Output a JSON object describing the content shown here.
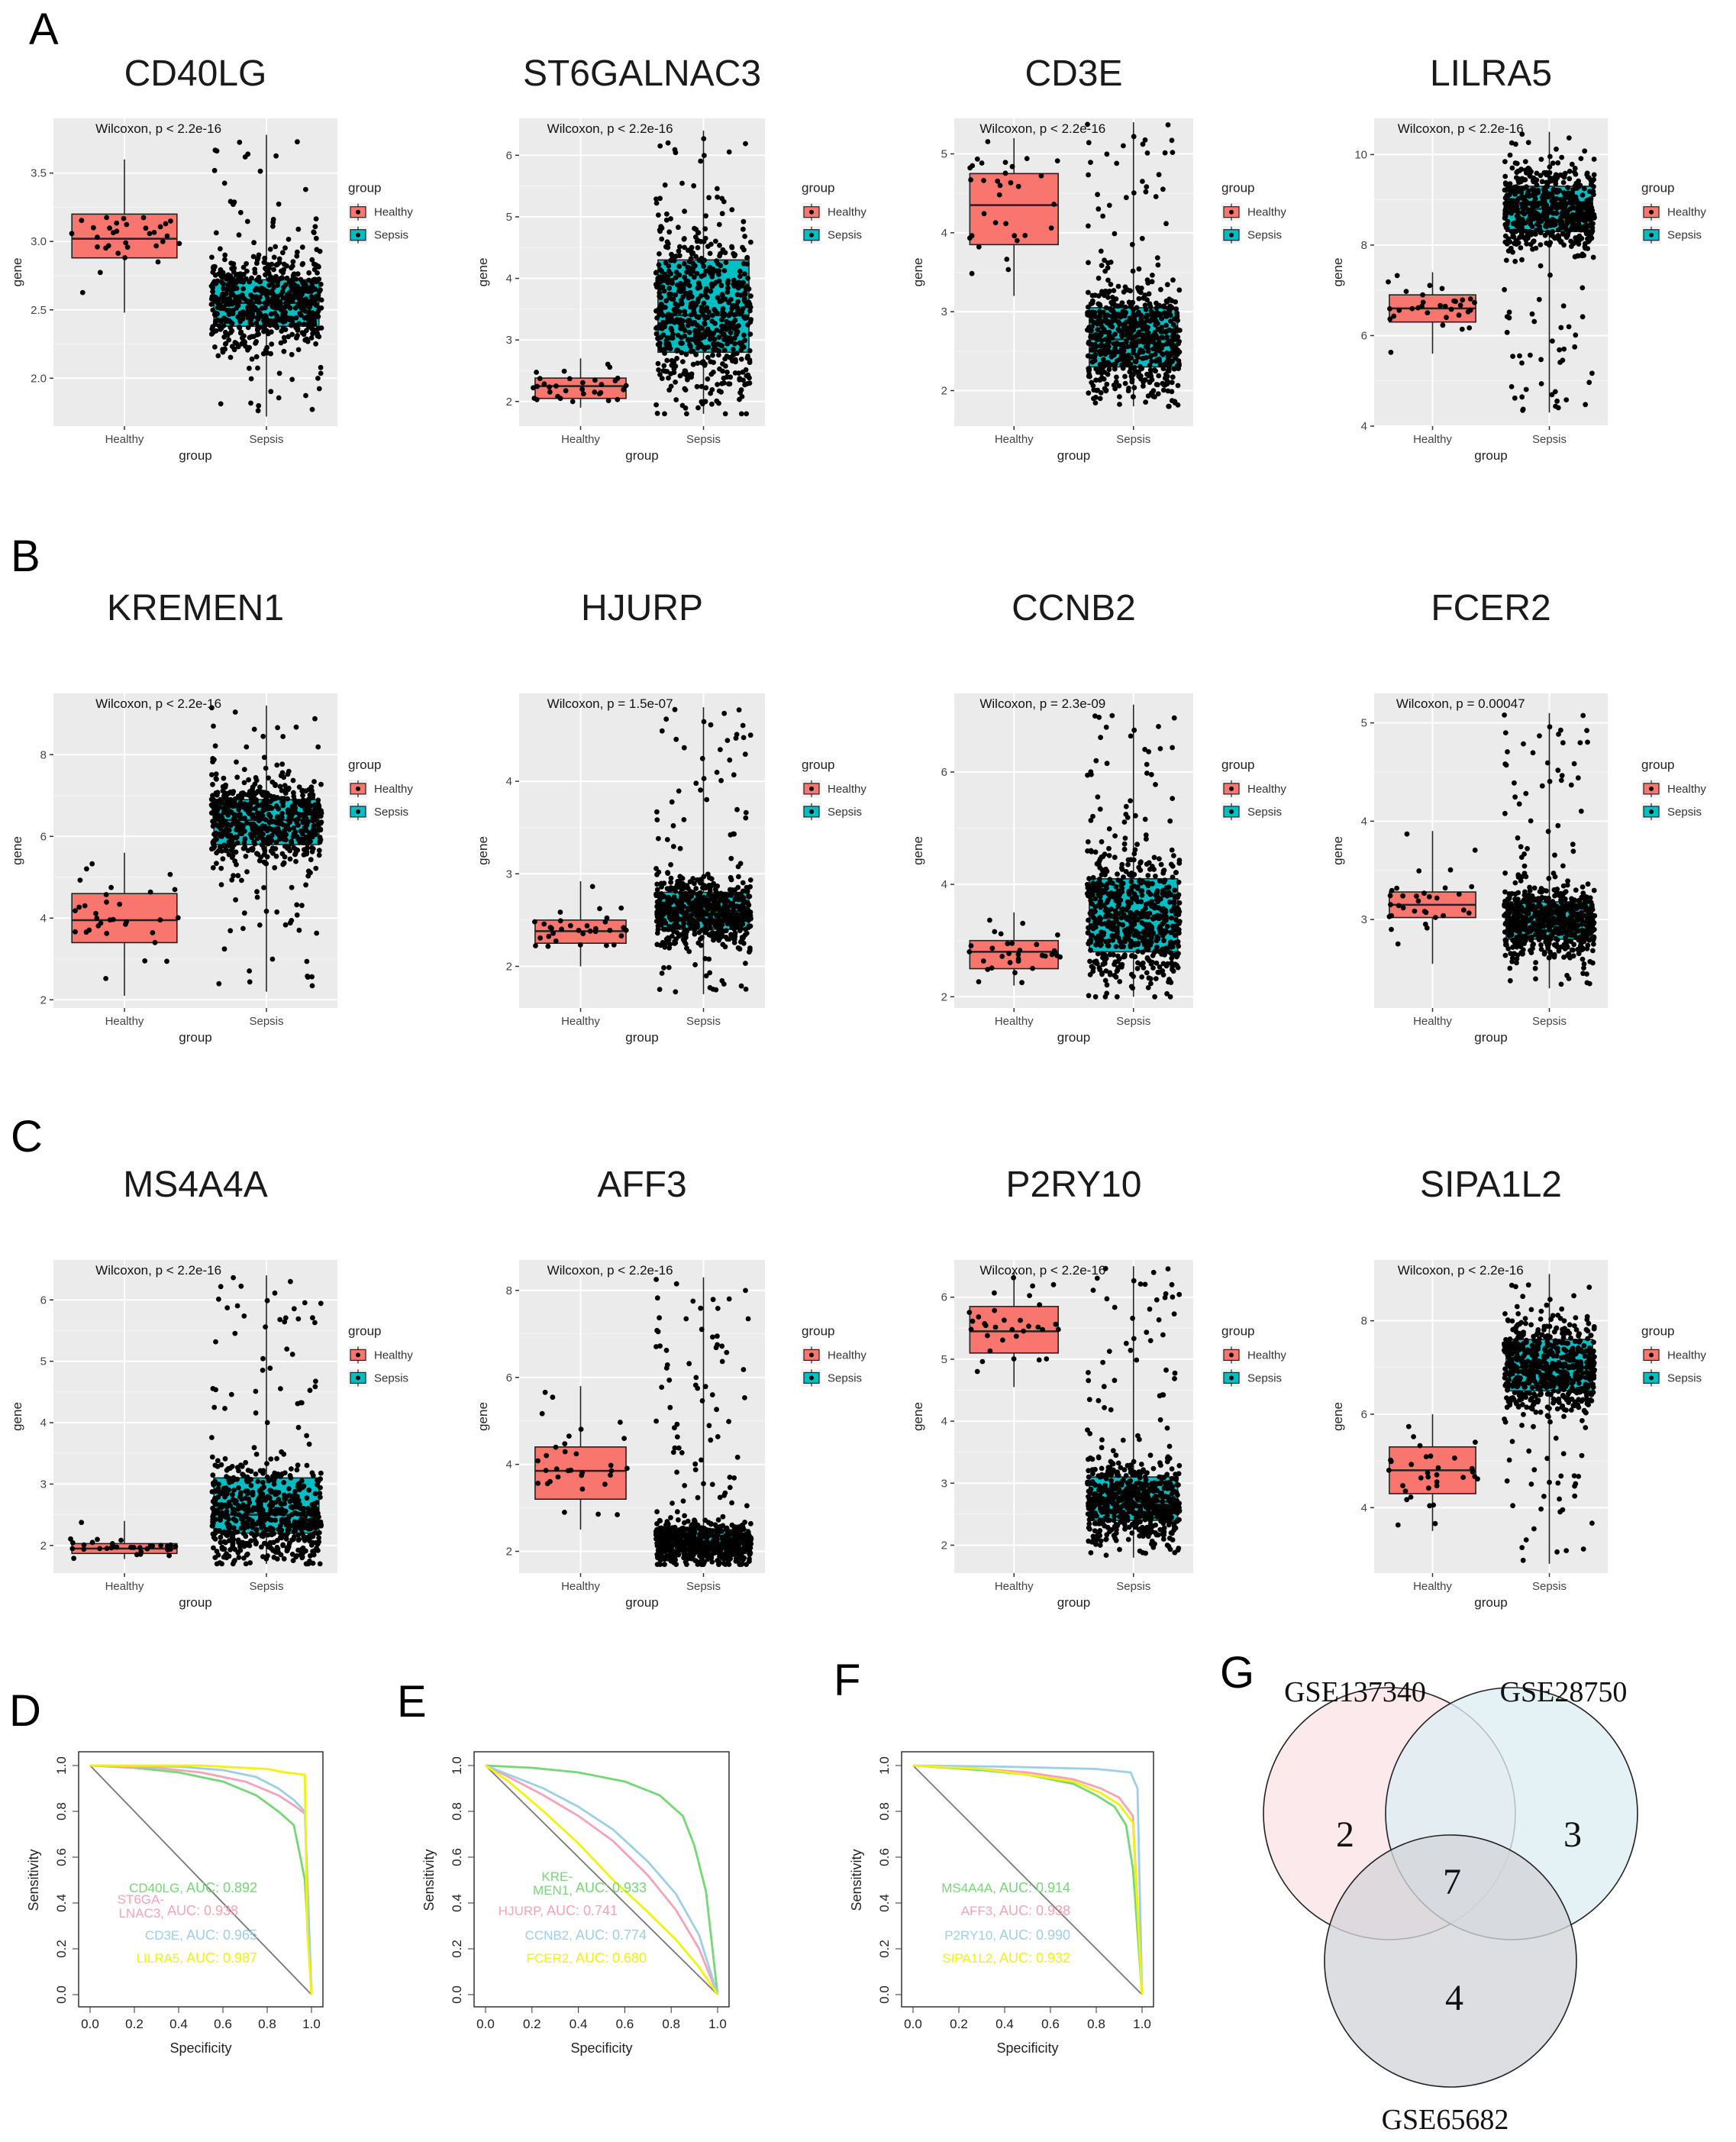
{
  "colors": {
    "healthy": "#F8766D",
    "sepsis": "#00BFC4",
    "panel_bg": "#EBEBEB",
    "grid": "#FFFFFF",
    "point": "#000000",
    "auc_colors": [
      "#76D776",
      "#F5A3B8",
      "#9CCFE6",
      "#F2F20A"
    ]
  },
  "legend": {
    "title": "group",
    "items": [
      "Healthy",
      "Sepsis"
    ]
  },
  "axis": {
    "x_label": "group",
    "y_label": "gene",
    "categories": [
      "Healthy",
      "Sepsis"
    ]
  },
  "panel_labels": [
    "A",
    "B",
    "C",
    "D",
    "E",
    "F",
    "G"
  ],
  "chart_data": [
    {
      "type": "box",
      "panel": "A",
      "title": "CD40LG",
      "annotation": "Wilcoxon, p < 2.2e-16",
      "yticks": [
        2.0,
        2.5,
        3.0,
        3.5
      ],
      "ylim": [
        1.65,
        3.9
      ],
      "healthy": {
        "q1": 2.88,
        "median": 3.02,
        "q3": 3.2,
        "lo": 2.48,
        "hi": 3.6
      },
      "sepsis": {
        "q1": 2.38,
        "median": 2.55,
        "q3": 2.72,
        "lo": 1.72,
        "hi": 3.78
      },
      "categories": [
        "Healthy",
        "Sepsis"
      ],
      "xlabel": "group",
      "ylabel": "gene"
    },
    {
      "type": "box",
      "panel": "A",
      "title": "ST6GALNAC3",
      "annotation": "Wilcoxon, p < 2.2e-16",
      "yticks": [
        2,
        3,
        4,
        5,
        6
      ],
      "ylim": [
        1.6,
        6.6
      ],
      "healthy": {
        "q1": 2.05,
        "median": 2.25,
        "q3": 2.38,
        "lo": 1.9,
        "hi": 2.7
      },
      "sepsis": {
        "q1": 2.8,
        "median": 3.4,
        "q3": 4.3,
        "lo": 1.8,
        "hi": 6.4
      },
      "categories": [
        "Healthy",
        "Sepsis"
      ],
      "xlabel": "group",
      "ylabel": "gene"
    },
    {
      "type": "box",
      "panel": "A",
      "title": "CD3E",
      "annotation": "Wilcoxon, p < 2.2e-16",
      "yticks": [
        2,
        3,
        4,
        5
      ],
      "ylim": [
        1.55,
        5.45
      ],
      "healthy": {
        "q1": 3.85,
        "median": 4.35,
        "q3": 4.75,
        "lo": 3.2,
        "hi": 5.2
      },
      "sepsis": {
        "q1": 2.3,
        "median": 2.65,
        "q3": 3.05,
        "lo": 1.8,
        "hi": 5.4
      },
      "categories": [
        "Healthy",
        "Sepsis"
      ],
      "xlabel": "group",
      "ylabel": "gene"
    },
    {
      "type": "box",
      "panel": "A",
      "title": "LILRA5",
      "annotation": "Wilcoxon, p < 2.2e-16",
      "yticks": [
        4,
        6,
        8,
        10
      ],
      "ylim": [
        4.0,
        10.8
      ],
      "healthy": {
        "q1": 6.3,
        "median": 6.6,
        "q3": 6.9,
        "lo": 5.6,
        "hi": 7.4
      },
      "sepsis": {
        "q1": 8.3,
        "median": 8.8,
        "q3": 9.3,
        "lo": 4.3,
        "hi": 10.5
      },
      "categories": [
        "Healthy",
        "Sepsis"
      ],
      "xlabel": "group",
      "ylabel": "gene"
    },
    {
      "type": "box",
      "panel": "B",
      "title": "KREMEN1",
      "annotation": "Wilcoxon, p < 2.2e-16",
      "yticks": [
        2,
        4,
        6,
        8
      ],
      "ylim": [
        1.8,
        9.5
      ],
      "healthy": {
        "q1": 3.4,
        "median": 3.95,
        "q3": 4.6,
        "lo": 2.1,
        "hi": 5.6
      },
      "sepsis": {
        "q1": 5.8,
        "median": 6.4,
        "q3": 6.9,
        "lo": 2.2,
        "hi": 9.2
      },
      "categories": [
        "Healthy",
        "Sepsis"
      ],
      "xlabel": "group",
      "ylabel": "gene"
    },
    {
      "type": "box",
      "panel": "B",
      "title": "HJURP",
      "annotation": "Wilcoxon, p = 1.5e-07",
      "yticks": [
        2,
        3,
        4
      ],
      "ylim": [
        1.55,
        4.95
      ],
      "healthy": {
        "q1": 2.25,
        "median": 2.38,
        "q3": 2.5,
        "lo": 2.0,
        "hi": 2.92
      },
      "sepsis": {
        "q1": 2.4,
        "median": 2.6,
        "q3": 2.8,
        "lo": 1.7,
        "hi": 4.8
      },
      "categories": [
        "Healthy",
        "Sepsis"
      ],
      "xlabel": "group",
      "ylabel": "gene"
    },
    {
      "type": "box",
      "panel": "B",
      "title": "CCNB2",
      "annotation": "Wilcoxon, p = 2.3e-09",
      "yticks": [
        2,
        4,
        6
      ],
      "ylim": [
        1.8,
        7.4
      ],
      "healthy": {
        "q1": 2.5,
        "median": 2.8,
        "q3": 3.0,
        "lo": 2.2,
        "hi": 3.5
      },
      "sepsis": {
        "q1": 2.8,
        "median": 3.4,
        "q3": 4.1,
        "lo": 2.0,
        "hi": 7.2
      },
      "categories": [
        "Healthy",
        "Sepsis"
      ],
      "xlabel": "group",
      "ylabel": "gene"
    },
    {
      "type": "box",
      "panel": "B",
      "title": "FCER2",
      "annotation": "Wilcoxon, p = 0.00047",
      "yticks": [
        3,
        4,
        5
      ],
      "ylim": [
        2.1,
        5.3
      ],
      "healthy": {
        "q1": 3.02,
        "median": 3.15,
        "q3": 3.28,
        "lo": 2.55,
        "hi": 3.9
      },
      "sepsis": {
        "q1": 2.8,
        "median": 2.98,
        "q3": 3.18,
        "lo": 2.3,
        "hi": 5.1
      },
      "categories": [
        "Healthy",
        "Sepsis"
      ],
      "xlabel": "group",
      "ylabel": "gene"
    },
    {
      "type": "box",
      "panel": "C",
      "title": "MS4A4A",
      "annotation": "Wilcoxon, p < 2.2e-16",
      "yticks": [
        2,
        3,
        4,
        5,
        6
      ],
      "ylim": [
        1.55,
        6.65
      ],
      "healthy": {
        "q1": 1.87,
        "median": 1.95,
        "q3": 2.03,
        "lo": 1.78,
        "hi": 2.4
      },
      "sepsis": {
        "q1": 2.2,
        "median": 2.5,
        "q3": 3.1,
        "lo": 1.7,
        "hi": 6.4
      },
      "categories": [
        "Healthy",
        "Sepsis"
      ],
      "xlabel": "group",
      "ylabel": "gene"
    },
    {
      "type": "box",
      "panel": "C",
      "title": "AFF3",
      "annotation": "Wilcoxon, p < 2.2e-16",
      "yticks": [
        2,
        4,
        6,
        8
      ],
      "ylim": [
        1.5,
        8.7
      ],
      "healthy": {
        "q1": 3.2,
        "median": 3.85,
        "q3": 4.4,
        "lo": 2.5,
        "hi": 5.8
      },
      "sepsis": {
        "q1": 1.95,
        "median": 2.2,
        "q3": 2.5,
        "lo": 1.7,
        "hi": 8.3
      },
      "categories": [
        "Healthy",
        "Sepsis"
      ],
      "xlabel": "group",
      "ylabel": "gene"
    },
    {
      "type": "box",
      "panel": "C",
      "title": "P2RY10",
      "annotation": "Wilcoxon, p < 2.2e-16",
      "yticks": [
        2,
        3,
        4,
        5,
        6
      ],
      "ylim": [
        1.55,
        6.6
      ],
      "healthy": {
        "q1": 5.1,
        "median": 5.45,
        "q3": 5.85,
        "lo": 4.55,
        "hi": 6.4
      },
      "sepsis": {
        "q1": 2.4,
        "median": 2.7,
        "q3": 3.1,
        "lo": 1.8,
        "hi": 6.5
      },
      "categories": [
        "Healthy",
        "Sepsis"
      ],
      "xlabel": "group",
      "ylabel": "gene"
    },
    {
      "type": "box",
      "panel": "C",
      "title": "SIPA1L2",
      "annotation": "Wilcoxon, p < 2.2e-16",
      "yticks": [
        4,
        6,
        8
      ],
      "ylim": [
        2.6,
        9.3
      ],
      "healthy": {
        "q1": 4.3,
        "median": 4.8,
        "q3": 5.3,
        "lo": 3.5,
        "hi": 6.0
      },
      "sepsis": {
        "q1": 6.5,
        "median": 7.0,
        "q3": 7.6,
        "lo": 2.8,
        "hi": 9.0
      },
      "categories": [
        "Healthy",
        "Sepsis"
      ],
      "xlabel": "group",
      "ylabel": "gene"
    },
    {
      "type": "roc",
      "panel": "D",
      "xlabel": "Specificity",
      "ylabel": "Sensitivity",
      "xticks": [
        "0.0",
        "0.2",
        "0.4",
        "0.6",
        "0.8",
        "1.0"
      ],
      "yticks": [
        "0.0",
        "0.2",
        "0.4",
        "0.6",
        "0.8",
        "1.0"
      ],
      "series": [
        {
          "name": "CD40LG",
          "auc_label": "AUC: 0.892",
          "color": "#76D776",
          "points": [
            [
              0,
              1
            ],
            [
              0.2,
              0.99
            ],
            [
              0.4,
              0.97
            ],
            [
              0.6,
              0.93
            ],
            [
              0.75,
              0.87
            ],
            [
              0.85,
              0.8
            ],
            [
              0.92,
              0.74
            ],
            [
              0.95,
              0.6
            ],
            [
              0.97,
              0.5
            ],
            [
              1,
              0
            ]
          ]
        },
        {
          "name": "ST6GA-\nLNAC3",
          "auc_label": "AUC: 0.938",
          "color": "#F5A3B8",
          "points": [
            [
              0,
              1
            ],
            [
              0.3,
              0.99
            ],
            [
              0.5,
              0.97
            ],
            [
              0.7,
              0.93
            ],
            [
              0.85,
              0.87
            ],
            [
              0.93,
              0.82
            ],
            [
              0.97,
              0.79
            ],
            [
              1,
              0
            ]
          ]
        },
        {
          "name": "CD3E",
          "auc_label": "AUC: 0.965",
          "color": "#9CCFE6",
          "points": [
            [
              0,
              1
            ],
            [
              0.4,
              0.995
            ],
            [
              0.6,
              0.98
            ],
            [
              0.75,
              0.95
            ],
            [
              0.85,
              0.9
            ],
            [
              0.92,
              0.85
            ],
            [
              0.97,
              0.8
            ],
            [
              1,
              0
            ]
          ]
        },
        {
          "name": "LILRA5",
          "auc_label": "AUC: 0.987",
          "color": "#F2F20A",
          "points": [
            [
              0,
              1
            ],
            [
              0.5,
              1
            ],
            [
              0.7,
              0.99
            ],
            [
              0.8,
              0.985
            ],
            [
              0.88,
              0.97
            ],
            [
              0.97,
              0.96
            ],
            [
              0.98,
              0.3
            ],
            [
              1,
              0
            ]
          ]
        }
      ]
    },
    {
      "type": "roc",
      "panel": "E",
      "xlabel": "Specificity",
      "ylabel": "Sensitivity",
      "xticks": [
        "0.0",
        "0.2",
        "0.4",
        "0.6",
        "0.8",
        "1.0"
      ],
      "yticks": [
        "0.0",
        "0.2",
        "0.4",
        "0.6",
        "0.8",
        "1.0"
      ],
      "series": [
        {
          "name": "KRE-\nMEN1",
          "auc_label": "AUC: 0.933",
          "color": "#76D776",
          "points": [
            [
              0,
              1
            ],
            [
              0.2,
              0.99
            ],
            [
              0.4,
              0.97
            ],
            [
              0.6,
              0.93
            ],
            [
              0.75,
              0.87
            ],
            [
              0.85,
              0.78
            ],
            [
              0.9,
              0.65
            ],
            [
              0.95,
              0.45
            ],
            [
              1,
              0
            ]
          ]
        },
        {
          "name": "HJURP",
          "auc_label": "AUC: 0.741",
          "color": "#F5A3B8",
          "points": [
            [
              0,
              1
            ],
            [
              0.1,
              0.95
            ],
            [
              0.25,
              0.87
            ],
            [
              0.4,
              0.78
            ],
            [
              0.55,
              0.67
            ],
            [
              0.7,
              0.52
            ],
            [
              0.82,
              0.37
            ],
            [
              0.92,
              0.2
            ],
            [
              1,
              0
            ]
          ]
        },
        {
          "name": "CCNB2",
          "auc_label": "AUC: 0.774",
          "color": "#9CCFE6",
          "points": [
            [
              0,
              1
            ],
            [
              0.1,
              0.96
            ],
            [
              0.25,
              0.9
            ],
            [
              0.4,
              0.82
            ],
            [
              0.55,
              0.72
            ],
            [
              0.7,
              0.58
            ],
            [
              0.82,
              0.44
            ],
            [
              0.92,
              0.26
            ],
            [
              1,
              0
            ]
          ]
        },
        {
          "name": "FCER2",
          "auc_label": "AUC: 0.680",
          "color": "#F2F20A",
          "points": [
            [
              0,
              1
            ],
            [
              0.1,
              0.93
            ],
            [
              0.25,
              0.8
            ],
            [
              0.4,
              0.66
            ],
            [
              0.55,
              0.5
            ],
            [
              0.7,
              0.36
            ],
            [
              0.82,
              0.24
            ],
            [
              0.92,
              0.12
            ],
            [
              1,
              0
            ]
          ]
        }
      ]
    },
    {
      "type": "roc",
      "panel": "F",
      "xlabel": "Specificity",
      "ylabel": "Sensitivity",
      "xticks": [
        "0.0",
        "0.2",
        "0.4",
        "0.6",
        "0.8",
        "1.0"
      ],
      "yticks": [
        "0.0",
        "0.2",
        "0.4",
        "0.6",
        "0.8",
        "1.0"
      ],
      "series": [
        {
          "name": "MS4A4A",
          "auc_label": "AUC: 0.914",
          "color": "#76D776",
          "points": [
            [
              0,
              1
            ],
            [
              0.3,
              0.98
            ],
            [
              0.5,
              0.96
            ],
            [
              0.7,
              0.92
            ],
            [
              0.8,
              0.87
            ],
            [
              0.88,
              0.82
            ],
            [
              0.93,
              0.74
            ],
            [
              0.96,
              0.55
            ],
            [
              1,
              0
            ]
          ]
        },
        {
          "name": "AFF3",
          "auc_label": "AUC: 0.938",
          "color": "#F5A3B8",
          "points": [
            [
              0,
              1
            ],
            [
              0.3,
              0.985
            ],
            [
              0.5,
              0.97
            ],
            [
              0.7,
              0.94
            ],
            [
              0.82,
              0.9
            ],
            [
              0.9,
              0.86
            ],
            [
              0.96,
              0.78
            ],
            [
              1,
              0
            ]
          ]
        },
        {
          "name": "P2RY10",
          "auc_label": "AUC: 0.990",
          "color": "#9CCFE6",
          "points": [
            [
              0,
              1
            ],
            [
              0.4,
              0.995
            ],
            [
              0.6,
              0.99
            ],
            [
              0.8,
              0.985
            ],
            [
              0.95,
              0.97
            ],
            [
              0.98,
              0.9
            ],
            [
              1,
              0
            ]
          ]
        },
        {
          "name": "SIPA1L2",
          "auc_label": "AUC: 0.932",
          "color": "#F2F20A",
          "points": [
            [
              0,
              1
            ],
            [
              0.3,
              0.985
            ],
            [
              0.5,
              0.96
            ],
            [
              0.7,
              0.93
            ],
            [
              0.82,
              0.88
            ],
            [
              0.9,
              0.83
            ],
            [
              0.96,
              0.75
            ],
            [
              1,
              0
            ]
          ]
        }
      ]
    },
    {
      "type": "venn",
      "panel": "G",
      "sets": [
        {
          "name": "GSE137340",
          "only": 2,
          "color": "#FBE3E5"
        },
        {
          "name": "GSE28750",
          "only": 3,
          "color": "#DDEEF3"
        },
        {
          "name": "GSE65682",
          "only": 4,
          "color": "#D3D5D9"
        }
      ],
      "intersection": 7
    }
  ]
}
